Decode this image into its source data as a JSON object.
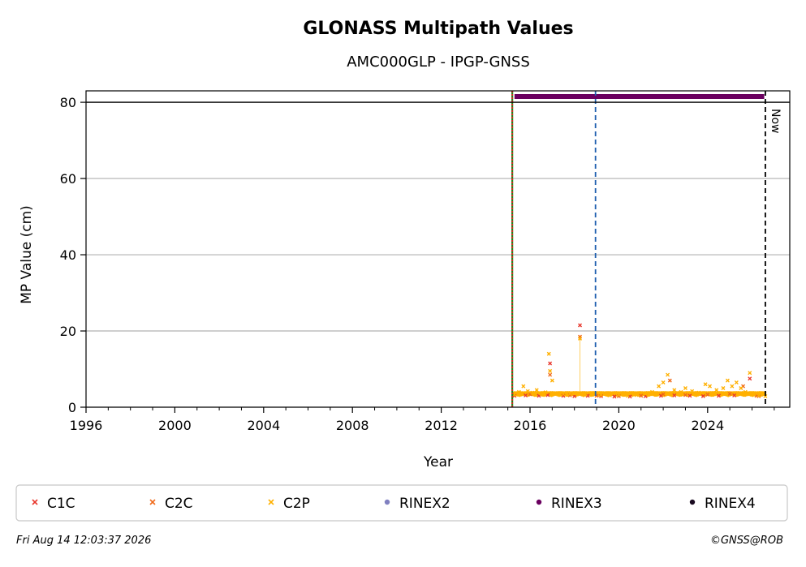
{
  "chart_data": {
    "type": "scatter",
    "title": "GLONASS Multipath Values",
    "subtitle": "AMC000GLP - IPGP-GNSS",
    "xlabel": "Year",
    "ylabel": "MP Value (cm)",
    "xlim": [
      1996,
      2027.7
    ],
    "ylim": [
      0,
      83
    ],
    "x_ticks": [
      1996,
      2000,
      2004,
      2008,
      2012,
      2016,
      2020,
      2024
    ],
    "y_ticks": [
      0,
      20,
      40,
      60,
      80
    ],
    "grid": "horizontal",
    "now_label": "Now",
    "legend_placement": "bottom",
    "series": [
      {
        "name": "C1C",
        "color": "#e8382e",
        "marker": "x",
        "points": [
          [
            2015.3,
            3.0
          ],
          [
            2015.8,
            3.1
          ],
          [
            2016.4,
            3.0
          ],
          [
            2016.8,
            3.2
          ],
          [
            2016.9,
            11.5
          ],
          [
            2017.5,
            3.0
          ],
          [
            2018.0,
            2.9
          ],
          [
            2018.25,
            21.5
          ],
          [
            2018.6,
            3.0
          ],
          [
            2019.2,
            2.9
          ],
          [
            2019.8,
            2.8
          ],
          [
            2020.5,
            2.8
          ],
          [
            2021.2,
            2.9
          ],
          [
            2021.9,
            3.0
          ],
          [
            2022.5,
            3.1
          ],
          [
            2023.2,
            3.0
          ],
          [
            2023.8,
            2.9
          ],
          [
            2024.5,
            3.0
          ],
          [
            2025.2,
            3.1
          ],
          [
            2025.9,
            7.5
          ],
          [
            2026.3,
            2.9
          ]
        ]
      },
      {
        "name": "C2C",
        "color": "#f06a1a",
        "marker": "x",
        "points": [
          [
            2015.3,
            3.2
          ],
          [
            2016.0,
            3.4
          ],
          [
            2016.9,
            8.5
          ],
          [
            2017.8,
            3.1
          ],
          [
            2018.25,
            18.5
          ],
          [
            2019.0,
            3.0
          ],
          [
            2020.0,
            2.9
          ],
          [
            2021.0,
            3.0
          ],
          [
            2022.0,
            3.4
          ],
          [
            2022.3,
            7.0
          ],
          [
            2023.0,
            3.2
          ],
          [
            2024.0,
            3.3
          ],
          [
            2025.0,
            3.5
          ],
          [
            2025.6,
            5.5
          ],
          [
            2026.2,
            3.0
          ]
        ]
      },
      {
        "name": "C2P",
        "color": "#ffb000",
        "marker": "x",
        "points": [
          [
            2015.3,
            3.3
          ],
          [
            2015.5,
            4.0
          ],
          [
            2015.7,
            5.5
          ],
          [
            2015.9,
            4.2
          ],
          [
            2016.1,
            3.8
          ],
          [
            2016.3,
            4.5
          ],
          [
            2016.5,
            3.6
          ],
          [
            2016.7,
            3.9
          ],
          [
            2016.85,
            14.0
          ],
          [
            2016.9,
            9.5
          ],
          [
            2017.0,
            7.0
          ],
          [
            2017.2,
            3.6
          ],
          [
            2017.5,
            3.4
          ],
          [
            2017.8,
            3.5
          ],
          [
            2018.0,
            3.6
          ],
          [
            2018.25,
            18.0
          ],
          [
            2018.5,
            3.4
          ],
          [
            2018.8,
            3.3
          ],
          [
            2019.2,
            3.2
          ],
          [
            2019.6,
            3.1
          ],
          [
            2020.0,
            3.3
          ],
          [
            2020.4,
            3.0
          ],
          [
            2020.8,
            3.2
          ],
          [
            2021.2,
            3.5
          ],
          [
            2021.5,
            4.0
          ],
          [
            2021.8,
            5.5
          ],
          [
            2022.0,
            6.5
          ],
          [
            2022.2,
            8.5
          ],
          [
            2022.5,
            4.5
          ],
          [
            2022.8,
            4.0
          ],
          [
            2023.0,
            5.0
          ],
          [
            2023.3,
            4.2
          ],
          [
            2023.6,
            3.8
          ],
          [
            2023.9,
            6.0
          ],
          [
            2024.1,
            5.5
          ],
          [
            2024.4,
            4.5
          ],
          [
            2024.7,
            5.0
          ],
          [
            2024.9,
            7.0
          ],
          [
            2025.1,
            5.5
          ],
          [
            2025.3,
            6.5
          ],
          [
            2025.5,
            5.0
          ],
          [
            2025.7,
            4.0
          ],
          [
            2025.9,
            9.0
          ],
          [
            2026.1,
            3.5
          ],
          [
            2026.3,
            3.0
          ],
          [
            2026.6,
            2.9
          ]
        ]
      },
      {
        "name": "RINEX2",
        "color": "#8080c0",
        "marker": "dot",
        "points": []
      },
      {
        "name": "RINEX3",
        "color": "#6a005f",
        "marker": "dot",
        "segment": [
          2015.3,
          2026.55
        ],
        "y": 81.5
      },
      {
        "name": "RINEX4",
        "color": "#1a0a20",
        "marker": "dot",
        "points": []
      }
    ],
    "vertical_lines": [
      {
        "x": 2015.2,
        "color": "#1a8a1a",
        "style": "solid"
      },
      {
        "x": 2015.2,
        "color": "#e02020",
        "style": "dotted"
      },
      {
        "x": 2018.95,
        "color": "#1f5fae",
        "style": "dashed"
      },
      {
        "x": 2026.6,
        "color": "#000000",
        "style": "dashed"
      }
    ]
  },
  "footer": {
    "timestamp": "Fri Aug 14 12:03:37 2026",
    "credit": "©GNSS@ROB"
  }
}
